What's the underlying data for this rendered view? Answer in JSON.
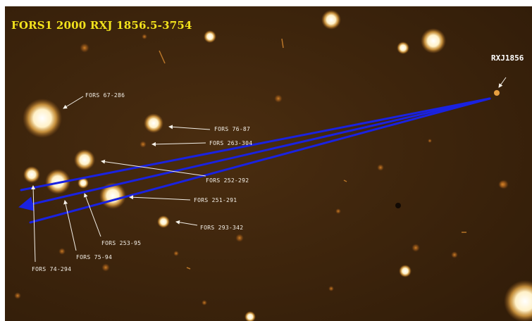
{
  "image": {
    "title": "FORS1 2000 RXJ 1856.5-3754",
    "target_label": "RXJ1856",
    "colors": {
      "background": "#3d250d",
      "title": "#f2e21c",
      "labels": "#f4f0e8",
      "trajectory": "#1a22e0",
      "star": "#fff4d6"
    },
    "stars": [
      {
        "label": "FORS 67-286"
      },
      {
        "label": "FORS 76-87"
      },
      {
        "label": "FORS 263-304"
      },
      {
        "label": "FORS 252-292"
      },
      {
        "label": "FORS 251-291"
      },
      {
        "label": "FORS 293-342"
      },
      {
        "label": "FORS 253-95"
      },
      {
        "label": "FORS 75-94"
      },
      {
        "label": "FORS 74-294"
      }
    ]
  }
}
